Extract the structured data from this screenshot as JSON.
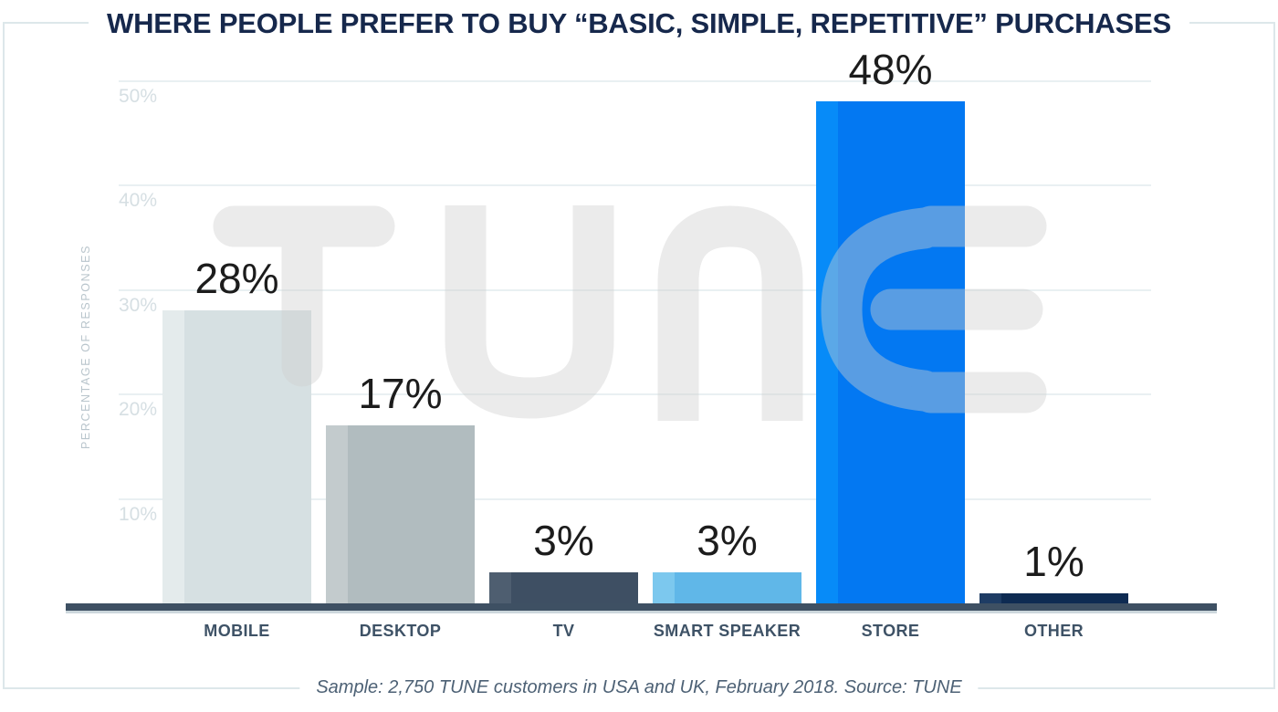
{
  "title": "WHERE PEOPLE PREFER TO BUY “BASIC, SIMPLE, REPETITIVE” PURCHASES",
  "caption": "Sample: 2,750 TUNE customers in USA and UK, February 2018. Source: TUNE",
  "watermark": "TUNE",
  "chart_data": {
    "type": "bar",
    "title": "WHERE PEOPLE PREFER TO BUY “BASIC, SIMPLE, REPETITIVE” PURCHASES",
    "categories": [
      "MOBILE",
      "DESKTOP",
      "TV",
      "SMART SPEAKER",
      "STORE",
      "OTHER"
    ],
    "values": [
      28,
      17,
      3,
      3,
      48,
      1
    ],
    "value_labels": [
      "28%",
      "17%",
      "3%",
      "3%",
      "48%",
      "1%"
    ],
    "xlabel": "",
    "ylabel": "PERCENTAGE OF RESPONSES",
    "ytick_labels": [
      "10%",
      "20%",
      "30%",
      "40%",
      "50%"
    ],
    "ytick_values": [
      10,
      20,
      30,
      40,
      50
    ],
    "ylim": [
      0,
      52
    ],
    "grid": "horizontal",
    "legend_position": "none",
    "source_note": "Sample: 2,750 TUNE customers in USA and UK, February 2018. Source: TUNE",
    "bar_colors": [
      {
        "body": "#d6e0e2",
        "stripe": "#e4ebec"
      },
      {
        "body": "#b1bcbf",
        "stripe": "#c3cbcd"
      },
      {
        "body": "#3e4f63",
        "stripe": "#4e5e70"
      },
      {
        "body": "#60b7e8",
        "stripe": "#7cc8ee"
      },
      {
        "body": "#0378f2",
        "stripe": "#078bf8"
      },
      {
        "body": "#0e2b52",
        "stripe": "#1e3c64"
      }
    ]
  },
  "colors": {
    "title_text": "#16284c",
    "frame_border": "#dde7ea",
    "gridline": "#e9f0f2",
    "tick_text": "#d6dfe3",
    "y_axis_title_text": "#b9c5cc",
    "axis_line": "#3e5063",
    "axis_underline": "#ccd7dc",
    "category_text": "#3e5266",
    "value_text": "#1c1c1c",
    "caption_text": "#4d6175",
    "watermark_gray": "#d0d0d0"
  }
}
